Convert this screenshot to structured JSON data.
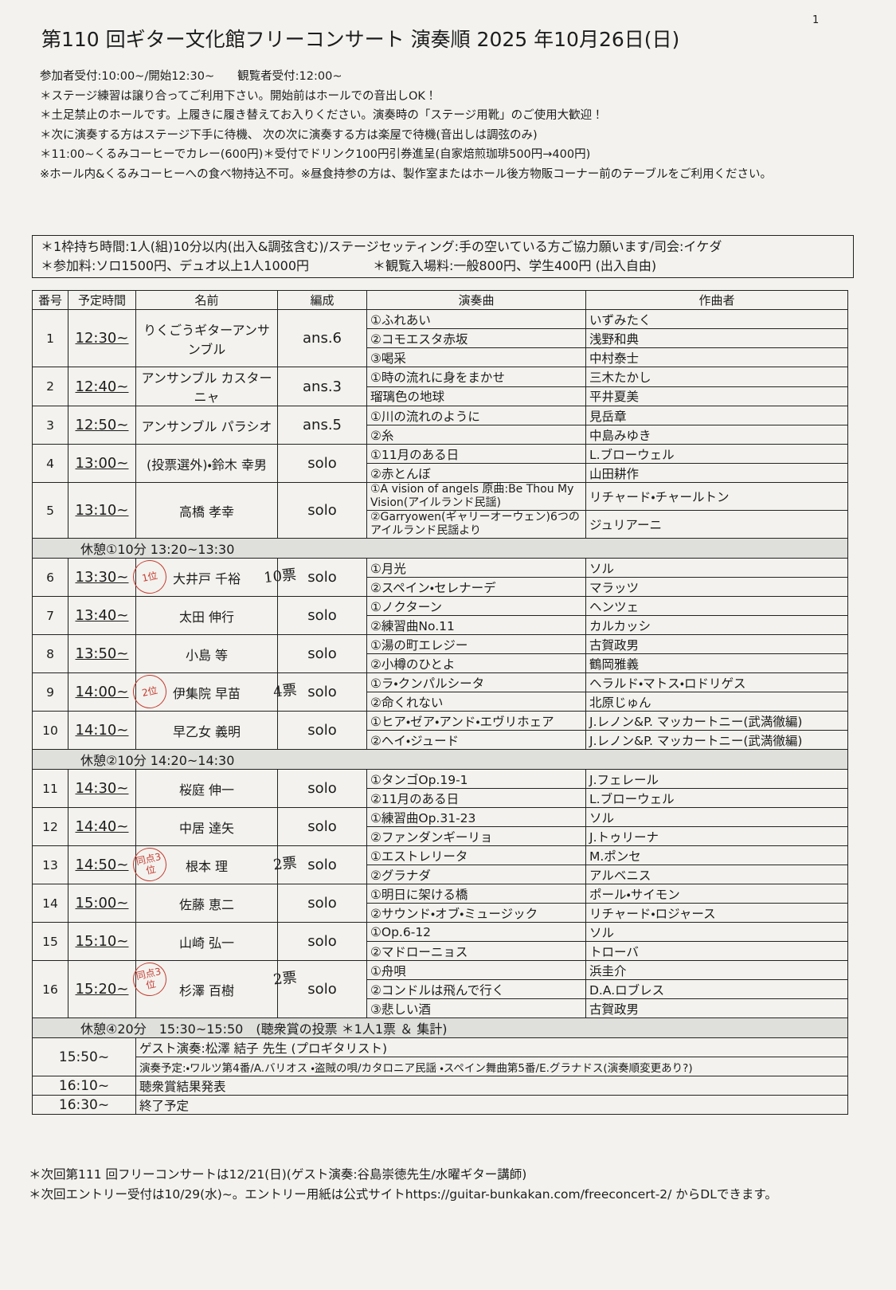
{
  "page": "1",
  "title": "第110 回ギター文化館フリーコンサート 演奏順  2025 年10月26日(日)",
  "notes": [
    "参加者受付:10:00~/開始12:30~　　観覧者受付:12:00~",
    "＊ステージ練習は譲り合ってご利用下さい。開始前はホールでの音出しOK！",
    "＊土足禁止のホールです。上履きに履き替えてお入りください。演奏時の「ステージ用靴」のご使用大歓迎！",
    "＊次に演奏する方はステージ下手に待機、 次の次に演奏する方は楽屋で待機(音出しは調弦のみ)",
    "＊11:00~くるみコーヒーでカレー(600円)＊受付でドリンク100円引券進呈(自家焙煎珈琲500円→400円)",
    "※ホール内&くるみコーヒーへの食べ物持込不可。※昼食持参の方は、製作室またはホール後方物販コーナー前のテーブルをご利用ください。"
  ],
  "info": [
    "＊1枠持ち時間:1人(組)10分以内(出入&調弦含む)/ステージセッティング:手の空いている方ご協力願います/司会:イケダ",
    "＊参加料:ソロ1500円、デュオ以上1人1000円",
    "＊観覧入場料:一般800円、学生400円 (出入自由)"
  ],
  "table": {
    "headers": [
      "番号",
      "予定時間",
      "名前",
      "編成",
      "演奏曲",
      "作曲者"
    ],
    "rows": [
      {
        "no": "1",
        "time": "12:30~",
        "name": "りくごうギターアンサンブル",
        "format": "ans.6",
        "pieces": [
          [
            "①ふれあい",
            "いずみたく"
          ],
          [
            "②コモエスタ赤坂",
            "浅野和典"
          ],
          [
            "③喝采",
            "中村泰士"
          ]
        ]
      },
      {
        "no": "2",
        "time": "12:40~",
        "name": "アンサンブル カスターニャ",
        "format": "ans.3",
        "pieces": [
          [
            "①時の流れに身をまかせ",
            "三木たかし"
          ],
          [
            "瑠璃色の地球",
            "平井夏美"
          ]
        ]
      },
      {
        "no": "3",
        "time": "12:50~",
        "name": "アンサンブル パラシオ",
        "format": "ans.5",
        "pieces": [
          [
            "①川の流れのように",
            "見岳章"
          ],
          [
            "②糸",
            "中島みゆき"
          ]
        ]
      },
      {
        "no": "4",
        "time": "13:00~",
        "name": "(投票選外)・鈴木 幸男",
        "format": "solo",
        "pieces": [
          [
            "①11月のある日",
            "L.ブローウェル"
          ],
          [
            "②赤とんぼ",
            "山田耕作"
          ]
        ]
      },
      {
        "no": "5",
        "time": "13:10~",
        "name": "高橋 孝幸",
        "format": "solo",
        "pieces": [
          [
            "①A vision of angels 原曲:Be Thou My Vision(アイルランド民謡)",
            "リチャード・チャールトン"
          ],
          [
            "②Garryowen(ギャリーオーウェン)6つのアイルランド民謡より",
            "ジュリアーニ"
          ]
        ]
      },
      {
        "break": "休憩①10分 13:20~13:30"
      },
      {
        "no": "6",
        "time": "13:30~",
        "name": "大井戸 千裕",
        "format": "solo",
        "rank": "1位",
        "votes": "10票",
        "pieces": [
          [
            "①月光",
            "ソル"
          ],
          [
            "②スペイン・セレナーデ",
            "マラッツ"
          ]
        ]
      },
      {
        "no": "7",
        "time": "13:40~",
        "name": "太田 伸行",
        "format": "solo",
        "pieces": [
          [
            "①ノクターン",
            "ヘンツェ"
          ],
          [
            "②練習曲No.11",
            "カルカッシ"
          ]
        ]
      },
      {
        "no": "8",
        "time": "13:50~",
        "name": "小島 等",
        "format": "solo",
        "pieces": [
          [
            "①湯の町エレジー",
            "古賀政男"
          ],
          [
            "②小樽のひとよ",
            "鶴岡雅義"
          ]
        ]
      },
      {
        "no": "9",
        "time": "14:00~",
        "name": "伊集院 早苗",
        "format": "solo",
        "rank": "2位",
        "votes": "4票",
        "pieces": [
          [
            "①ラ・クンパルシータ",
            "ヘラルド・マトス・ロドリゲス"
          ],
          [
            "②命くれない",
            "北原じゅん"
          ]
        ]
      },
      {
        "no": "10",
        "time": "14:10~",
        "name": "早乙女 義明",
        "format": "solo",
        "pieces": [
          [
            "①ヒア・ゼア・アンド・エヴリホェア",
            "J.レノン&P. マッカートニー(武満徹編)"
          ],
          [
            "②ヘイ・ジュード",
            "J.レノン&P. マッカートニー(武満徹編)"
          ]
        ]
      },
      {
        "break": "休憩②10分 14:20~14:30"
      },
      {
        "no": "11",
        "time": "14:30~",
        "name": "桜庭 伸一",
        "format": "solo",
        "pieces": [
          [
            "①タンゴOp.19-1",
            "J.フェレール"
          ],
          [
            "②11月のある日",
            "L.ブローウェル"
          ]
        ]
      },
      {
        "no": "12",
        "time": "14:40~",
        "name": "中居 達矢",
        "format": "solo",
        "pieces": [
          [
            "①練習曲Op.31-23",
            "ソル"
          ],
          [
            "②ファンダンギーリョ",
            "J.トゥリーナ"
          ]
        ]
      },
      {
        "no": "13",
        "time": "14:50~",
        "name": "根本 理",
        "format": "solo",
        "rank": "同点3位",
        "votes": "2票",
        "pieces": [
          [
            "①エストレリータ",
            "M.ポンセ"
          ],
          [
            "②グラナダ",
            "アルベニス"
          ]
        ]
      },
      {
        "no": "14",
        "time": "15:00~",
        "name": "佐藤 恵二",
        "format": "solo",
        "pieces": [
          [
            "①明日に架ける橋",
            "ポール・サイモン"
          ],
          [
            "②サウンド・オブ・ミュージック",
            "リチャード・ロジャース"
          ]
        ]
      },
      {
        "no": "15",
        "time": "15:10~",
        "name": "山崎 弘一",
        "format": "solo",
        "pieces": [
          [
            "①Op.6-12",
            "ソル"
          ],
          [
            "②マドローニョス",
            "トローバ"
          ]
        ]
      },
      {
        "no": "16",
        "time": "15:20~",
        "name": "杉澤 百樹",
        "format": "solo",
        "rank": "同点3位",
        "votes": "2票",
        "pieces": [
          [
            "①舟唄",
            "浜圭介"
          ],
          [
            "②コンドルは飛んで行く",
            "D.A.ロブレス"
          ],
          [
            "③悲しい酒",
            "古賀政男"
          ]
        ]
      },
      {
        "break": "休憩④20分　15:30~15:50　(聴衆賞の投票 ＊1人1票 ＆ 集計)"
      }
    ],
    "guest": {
      "time": "15:50~",
      "lines": [
        "ゲスト演奏:松澤 結子 先生 (プロギタリスト)",
        "演奏予定:・ワルツ第4番/A.バリオス ・盗賊の唄/カタロニア民謡 ・スペイン舞曲第5番/E.グラナドス(演奏順変更あり?)"
      ]
    },
    "closing": [
      {
        "time": "16:10~",
        "text": "聴衆賞結果発表"
      },
      {
        "time": "16:30~",
        "text": "終了予定"
      }
    ]
  },
  "footer": [
    "＊次回第111 回フリーコンサートは12/21(日)(ゲスト演奏:谷島崇徳先生/水曜ギター講師)",
    "＊次回エントリー受付は10/29(水)~。エントリー用紙は公式サイトhttps://guitar-bunkakan.com/freeconcert-2/ からDLできます。"
  ]
}
